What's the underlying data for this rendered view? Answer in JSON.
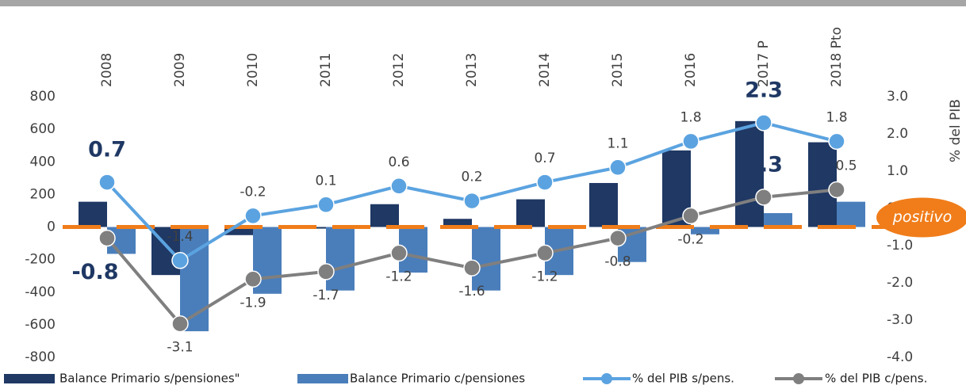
{
  "chart_data": {
    "type": "bar-line",
    "categories": [
      "2008",
      "2009",
      "2010",
      "2011",
      "2012",
      "2013",
      "2014",
      "2015",
      "2016",
      "2017 P",
      "2018 Pto"
    ],
    "series": [
      {
        "name": "Balance Primario s/pensiones\"",
        "type": "bar",
        "color": "#1f3864",
        "values": [
          155,
          -295,
          -50,
          -10,
          140,
          50,
          170,
          270,
          470,
          650,
          520
        ]
      },
      {
        "name": "Balance Primario c/pensiones",
        "type": "bar",
        "color": "#4a7ebb",
        "values": [
          -165,
          -640,
          -410,
          -390,
          -280,
          -390,
          -295,
          -215,
          -45,
          85,
          155
        ]
      },
      {
        "name": "% del PIB s/pens.",
        "type": "line",
        "axis": "y2",
        "color": "#5ba3e0",
        "values": [
          0.7,
          -1.4,
          -0.2,
          0.1,
          0.6,
          0.2,
          0.7,
          1.1,
          1.8,
          2.3,
          1.8
        ]
      },
      {
        "name": "% del PIB c/pens.",
        "type": "line",
        "axis": "y2",
        "color": "#7f7f7f",
        "values": [
          -0.8,
          -3.1,
          -1.9,
          -1.7,
          -1.2,
          -1.6,
          -1.2,
          -0.8,
          -0.2,
          0.3,
          0.5
        ]
      }
    ],
    "ylim": [
      -800,
      800
    ],
    "yticks": [
      -800,
      -600,
      -400,
      -200,
      0,
      200,
      400,
      600,
      800
    ],
    "y2lim": [
      -4,
      3
    ],
    "y2ticks": [
      {
        "value": -4,
        "label": "-4.0"
      },
      {
        "value": -3,
        "label": "-3.0"
      },
      {
        "value": -2,
        "label": "-2.0"
      },
      {
        "value": -1,
        "label": "-1.0"
      },
      {
        "value": 0,
        "label": "0.0"
      },
      {
        "value": 1,
        "label": "1.0"
      },
      {
        "value": 2,
        "label": "2.0"
      },
      {
        "value": 3,
        "label": "3.0"
      }
    ],
    "y2label": "% del PIB",
    "annotation": "positivo",
    "legend": "bottom"
  }
}
